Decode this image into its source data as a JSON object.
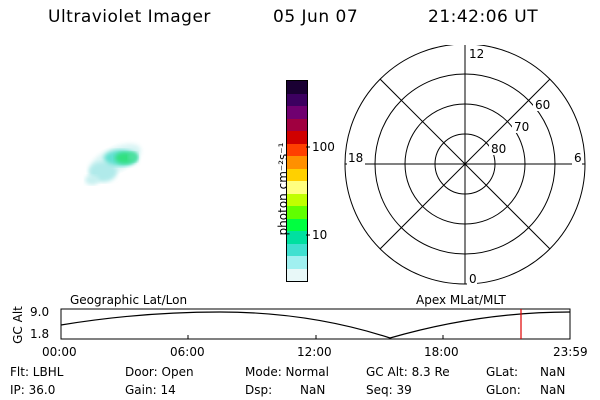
{
  "header": {
    "instrument": "Ultraviolet Imager",
    "date": "05 Jun 07",
    "time": "21:42:06 UT"
  },
  "colorbar": {
    "label": "photon cm⁻²s⁻¹",
    "ticks": [
      "100",
      "10"
    ],
    "colors": [
      "#1a0033",
      "#3c0060",
      "#700070",
      "#a00040",
      "#d00000",
      "#ff4000",
      "#ff9000",
      "#ffd000",
      "#ffff80",
      "#c0ff00",
      "#60ff00",
      "#00ff40",
      "#00e0a0",
      "#40e0d0",
      "#a0f0f0",
      "#e8f8f8"
    ]
  },
  "polar": {
    "mlt_labels": {
      "top": "12",
      "bottom": "0",
      "left": "18",
      "right": "6"
    },
    "lat_labels": [
      "60",
      "70",
      "80"
    ]
  },
  "altitude_panel": {
    "left_label": "Geographic Lat/Lon",
    "right_label": "Apex  MLat/MLT",
    "axis_label": "GC Alt",
    "y_ticks": [
      "9.0",
      "1.8"
    ],
    "x_ticks": [
      "00:00",
      "06:00",
      "12:00",
      "18:00",
      "23:59"
    ],
    "current_time_marker_color": "#e00000"
  },
  "info": {
    "row1": {
      "flt": "Flt: LBHL",
      "door": "Door: Open",
      "mode": "Mode: Normal",
      "gcalt": "GC Alt: 8.3 Re",
      "glat_label": "GLat:",
      "glat_value": "NaN"
    },
    "row2": {
      "ip": "IP: 36.0",
      "gain": "Gain: 14",
      "dsp_label": "Dsp:",
      "dsp_value": "NaN",
      "seq": "Seq: 39",
      "glon_label": "GLon:",
      "glon_value": "NaN"
    }
  }
}
